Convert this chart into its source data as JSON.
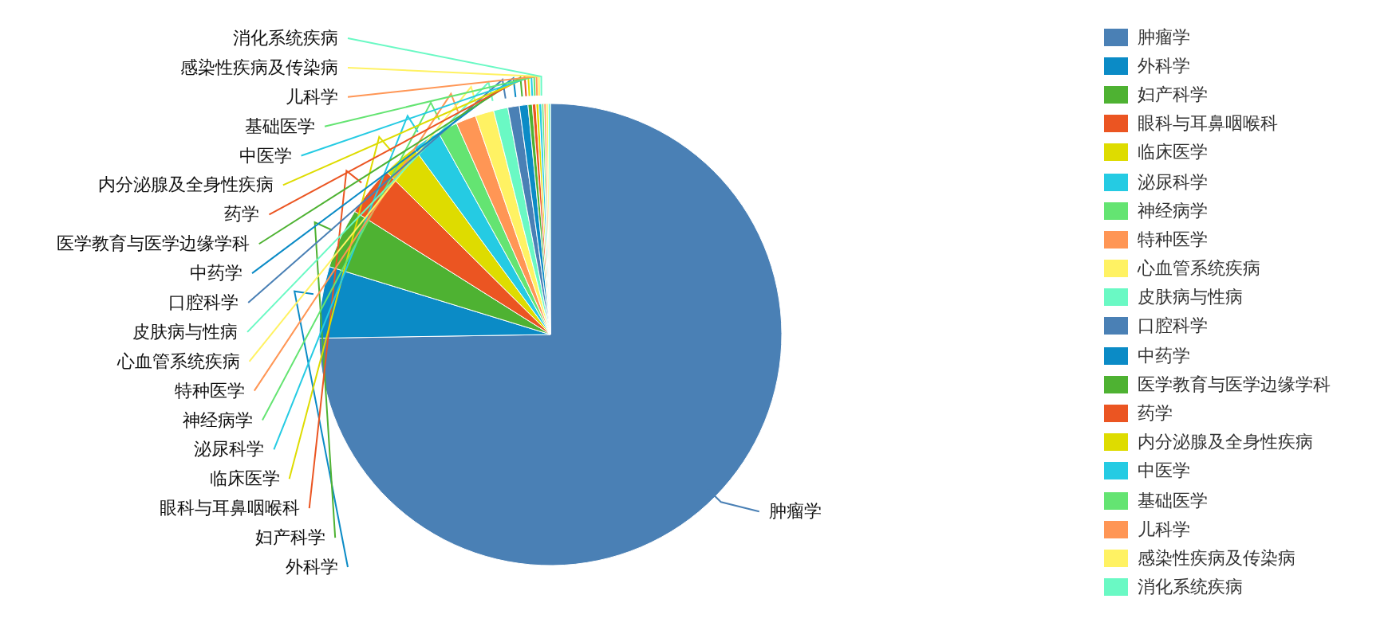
{
  "chart_data": {
    "type": "pie",
    "categories": [
      "肿瘤学",
      "外科学",
      "妇产科学",
      "眼科与耳鼻咽喉科",
      "临床医学",
      "泌尿科学",
      "神经病学",
      "特种医学",
      "心血管系统疾病",
      "皮肤病与性病",
      "口腔科学",
      "中药学",
      "医学教育与医学边缘学科",
      "药学",
      "内分泌腺及全身性疾病",
      "中医学",
      "基础医学",
      "儿科学",
      "感染性疾病及传染病",
      "消化系统疾病"
    ],
    "values": [
      74.75,
      5,
      4.2,
      3.5,
      2.5,
      2,
      1.4,
      1.4,
      1.3,
      1,
      0.8,
      0.6,
      0.3,
      0.25,
      0.2,
      0.2,
      0.15,
      0.15,
      0.15,
      0.15
    ],
    "colors": [
      "#4a80b5",
      "#0b8bc6",
      "#4eb232",
      "#eb5522",
      "#dedc00",
      "#25cbe3",
      "#64e472",
      "#ff9655",
      "#fff263",
      "#6af9c4",
      "#4a80b5",
      "#0b8bc6",
      "#4eb232",
      "#eb5522",
      "#dedc00",
      "#25cbe3",
      "#64e472",
      "#ff9655",
      "#fff263",
      "#6af9c4"
    ],
    "legend": "right"
  }
}
